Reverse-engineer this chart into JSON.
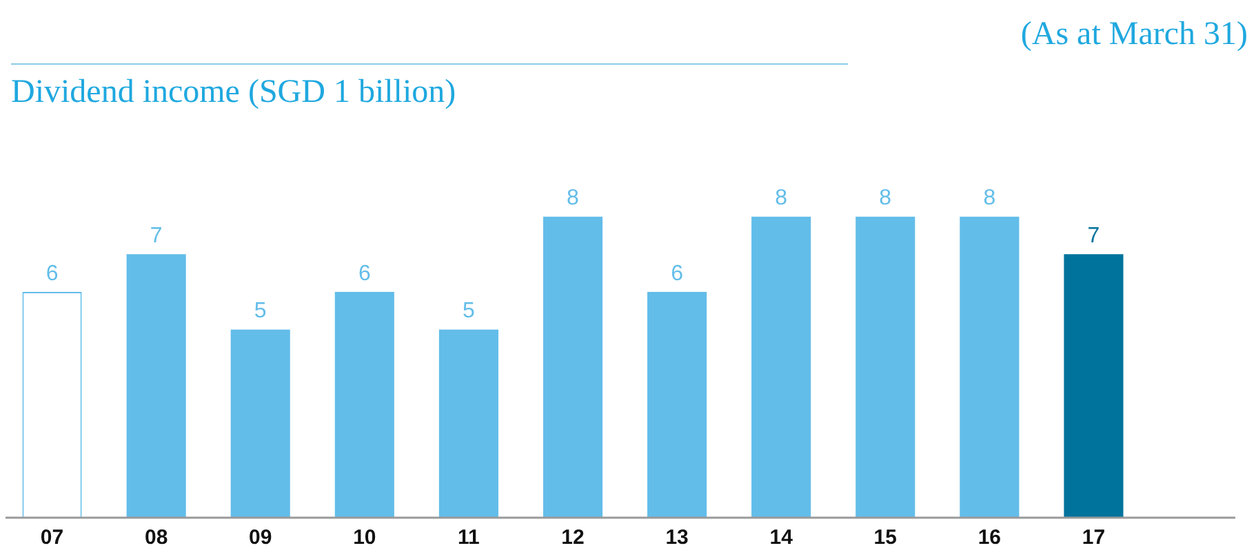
{
  "chart_data": {
    "type": "bar",
    "title": "Dividend income (SGD 1 billion)",
    "subtitle": "(As at March 31)",
    "categories": [
      "07",
      "08",
      "09",
      "10",
      "11",
      "12",
      "13",
      "14",
      "15",
      "16",
      "17"
    ],
    "values": [
      6,
      7,
      5,
      6,
      5,
      8,
      6,
      8,
      8,
      8,
      7
    ],
    "color": "#62bde9",
    "colors": [
      "#ffffff",
      "#62bde9",
      "#62bde9",
      "#62bde9",
      "#62bde9",
      "#62bde9",
      "#62bde9",
      "#62bde9",
      "#62bde9",
      "#62bde9",
      "#00739c"
    ],
    "data_labels": true,
    "grid": false,
    "legend": false
  }
}
